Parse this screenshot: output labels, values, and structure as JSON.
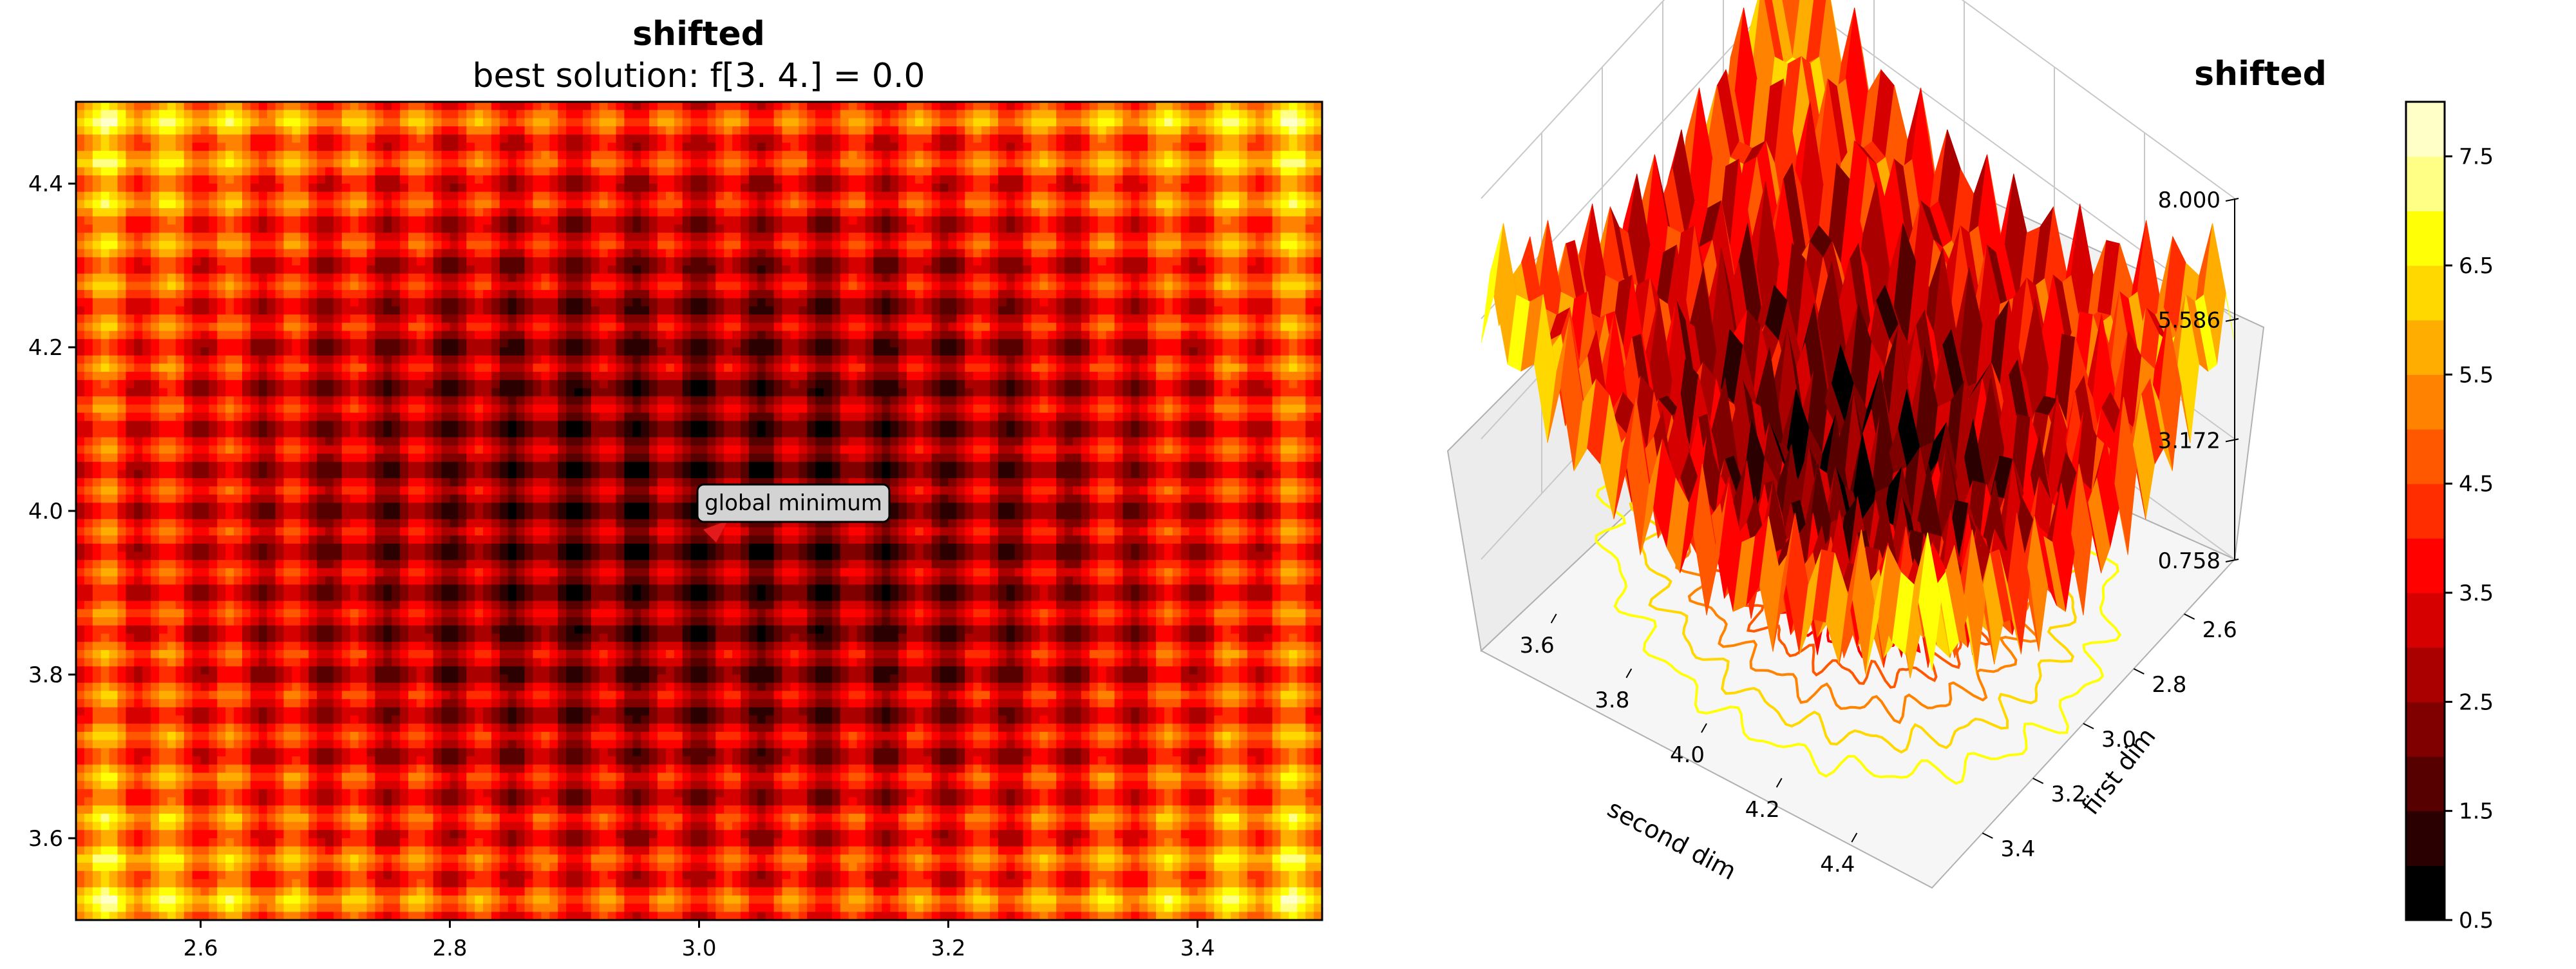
{
  "chart_data": [
    {
      "type": "heatmap",
      "subtype": "filled-contour",
      "title": "shifted",
      "subtitle": "best solution: f[3. 4.] = 0.0",
      "xlabel": "",
      "ylabel": "",
      "xlim": [
        2.5,
        3.5
      ],
      "ylim": [
        3.5,
        4.5
      ],
      "x_ticks": [
        2.6,
        2.8,
        3.0,
        3.2,
        3.4
      ],
      "x_tick_labels": [
        "2.6",
        "2.8",
        "3.0",
        "3.2",
        "3.4"
      ],
      "y_ticks": [
        3.6,
        3.8,
        4.0,
        4.2,
        4.4
      ],
      "y_tick_labels": [
        "3.6",
        "3.8",
        "4.0",
        "4.2",
        "4.4"
      ],
      "colormap": "hot",
      "value_range": [
        0.5,
        8.0
      ],
      "annotation": {
        "text": "global minimum",
        "x": 3.0,
        "y": 4.0
      }
    },
    {
      "type": "surface3d",
      "title": "shifted",
      "xlabel": "first dim",
      "ylabel": "second dim",
      "x_tick_labels": [
        "2.6",
        "2.8",
        "3.0",
        "3.2",
        "3.4"
      ],
      "y_tick_labels": [
        "3.6",
        "3.8",
        "4.0",
        "4.2",
        "4.4"
      ],
      "z_tick_labels": [
        "0.758",
        "3.172",
        "5.586",
        "8.000"
      ],
      "z_ticks": [
        0.758,
        3.172,
        5.586,
        8.0
      ],
      "zlim": [
        0.758,
        8.0
      ],
      "colormap": "hot",
      "contour_projection": true
    },
    {
      "type": "colorbar",
      "range": [
        0.5,
        8.0
      ],
      "levels": 15,
      "tick_labels": [
        "0.5",
        "1.5",
        "2.5",
        "3.5",
        "4.5",
        "5.5",
        "6.5",
        "7.5"
      ],
      "ticks": [
        0.5,
        1.5,
        2.5,
        3.5,
        4.5,
        5.5,
        6.5,
        7.5
      ]
    }
  ],
  "colors": {
    "hot_palette": [
      "#000000",
      "#2b0000",
      "#560000",
      "#800000",
      "#ab0000",
      "#d60000",
      "#ff0200",
      "#ff2d00",
      "#ff5800",
      "#ff8200",
      "#ffad00",
      "#ffd800",
      "#ffff06",
      "#ffff86",
      "#ffffc8"
    ],
    "annotation_arrow": "#e31a1c"
  }
}
